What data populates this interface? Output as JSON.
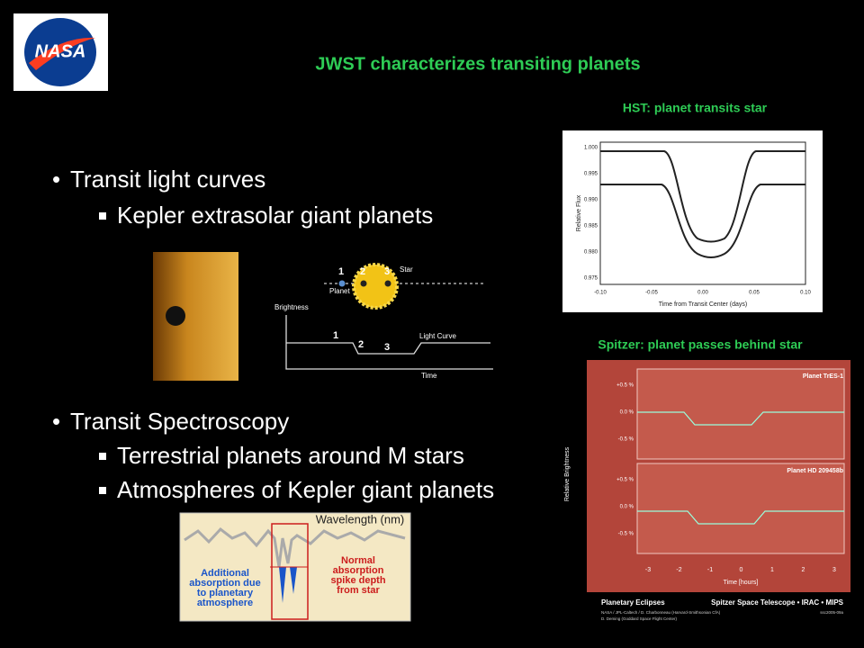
{
  "header": {
    "logo": "NASA",
    "title": "JWST characterizes transiting planets"
  },
  "bullets": [
    {
      "text": "Transit light curves",
      "sub": [
        "Kepler extrasolar giant planets"
      ]
    },
    {
      "text": "Transit Spectroscopy",
      "sub": [
        "Terrestrial planets around  M stars",
        "Atmospheres of Kepler giant planets"
      ]
    }
  ],
  "figures": {
    "hst": {
      "caption": "HST: planet transits star",
      "ylabel": "Relative Flux",
      "xlabel": "Time from Transit Center (days)",
      "yticks": [
        "1.000",
        "0.995",
        "0.990",
        "0.985",
        "0.980",
        "0.975"
      ],
      "xticks": [
        "-0.10",
        "-0.05",
        "0.00",
        "0.05",
        "0.10"
      ]
    },
    "diagram": {
      "steps": [
        "1",
        "2",
        "3"
      ],
      "star": "Star",
      "planet": "Planet",
      "ylabel": "Brightness",
      "curve": "Light Curve",
      "xlabel": "Time"
    },
    "spectrum": {
      "xlabel": "Wavelength (nm)",
      "left_note": [
        "Additional",
        "absorption due",
        "to planetary",
        "atmosphere"
      ],
      "right_note": [
        "Normal",
        "absorption",
        "spike depth",
        "from star"
      ]
    },
    "spitzer": {
      "caption": "Spitzer: planet passes behind star",
      "panels": [
        "Planet TrES-1",
        "Planet HD 209458b"
      ],
      "yticks": [
        "+0.5 %",
        "0.0 %",
        "-0.5 %"
      ],
      "ylabel": "Relative Brightness",
      "xlabel": "Time [hours]",
      "xticks": [
        "-3",
        "-2",
        "-1",
        "0",
        "1",
        "2",
        "3"
      ],
      "footer": "Planetary Eclipses",
      "footer_right": "Spitzer Space Telescope • IRAC • MIPS",
      "credits": [
        "NASA / JPL-Caltech / D. Charbonneau (Harvard-Smithsonian CfA)",
        "D. Deming (Goddard Space Flight Center)"
      ],
      "id": "ssc2005-09a"
    }
  }
}
